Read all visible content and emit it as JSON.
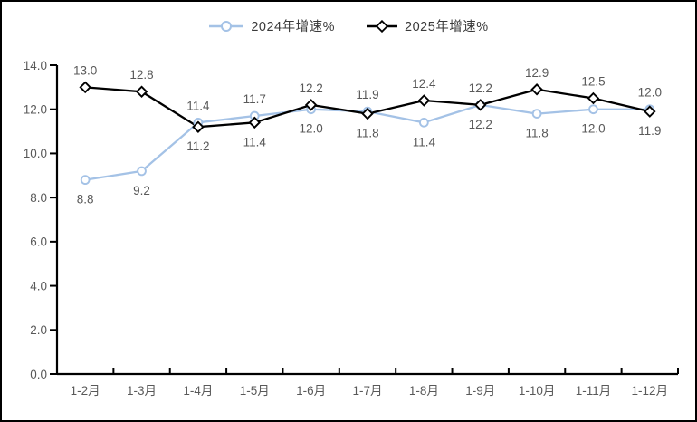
{
  "window": {
    "background": "#ffffff",
    "border_color": "#000000"
  },
  "legend": {
    "position": "top-center",
    "items": [
      {
        "label": "2024年增速%",
        "marker": "circle-icon",
        "color": "#a4c2e6"
      },
      {
        "label": "2025年增速%",
        "marker": "diamond-icon",
        "color": "#000000"
      }
    ]
  },
  "chart_data": {
    "type": "line",
    "title": "",
    "xlabel": "",
    "ylabel": "",
    "grid": false,
    "legend_position": "top",
    "categories": [
      "1-2月",
      "1-3月",
      "1-4月",
      "1-5月",
      "1-6月",
      "1-7月",
      "1-8月",
      "1-9月",
      "1-10月",
      "1-11月",
      "1-12月"
    ],
    "series": [
      {
        "name": "2024年增速%",
        "color": "#a4c2e6",
        "marker": "circle",
        "values": [
          8.8,
          9.2,
          11.4,
          11.7,
          12.0,
          11.9,
          11.4,
          12.2,
          11.8,
          12.0,
          12.0
        ]
      },
      {
        "name": "2025年增速%",
        "color": "#000000",
        "marker": "diamond",
        "values": [
          13.0,
          12.8,
          11.2,
          11.4,
          12.2,
          11.8,
          12.4,
          12.2,
          12.9,
          12.5,
          11.9
        ]
      }
    ],
    "ylim": [
      0,
      14
    ],
    "ytick_step": 2,
    "ytick_labels": [
      "0.0",
      "2.0",
      "4.0",
      "6.0",
      "8.0",
      "10.0",
      "12.0",
      "14.0"
    ],
    "data_labels": "one-decimal",
    "data_label_color": "#595959",
    "axis_label_color": "#595959",
    "axis_color": "#000000"
  }
}
